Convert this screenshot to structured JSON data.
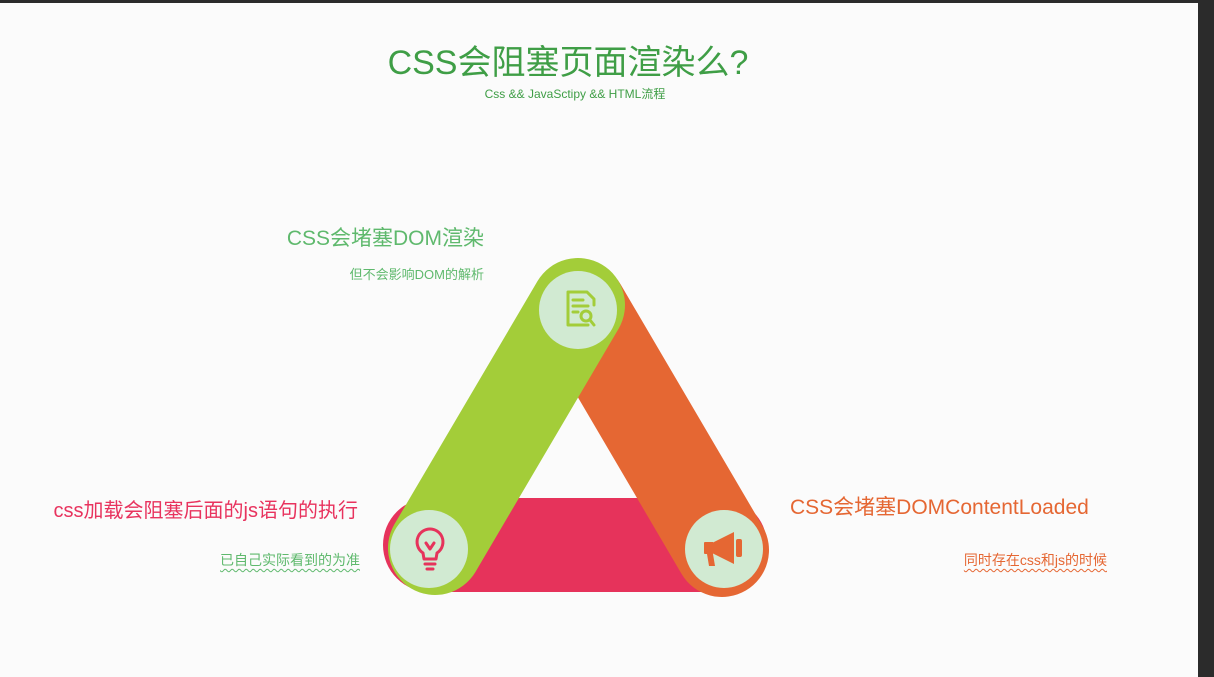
{
  "slide": {
    "title": "CSS会阻塞页面渲染么?",
    "subtitle": "Css && JavaSctipy && HTML流程"
  },
  "nodes": [
    {
      "id": "top",
      "heading": "CSS会堵塞DOM渲染",
      "note": "但不会影响DOM的解析",
      "icon": "document-search-icon",
      "color": "#a3cd39",
      "text_color": "#5fb96d"
    },
    {
      "id": "left",
      "heading": "css加载会阻塞后面的js语句的执行",
      "note": "已自己实际看到的为准",
      "icon": "lightbulb-icon",
      "color": "#e6335b",
      "text_color": "#e8335e",
      "note_color": "#5fb96d"
    },
    {
      "id": "right",
      "heading": "CSS会堵塞DOMContentLoaded",
      "note": "同时存在css和js的时候",
      "icon": "megaphone-icon",
      "color": "#e56733",
      "text_color": "#e56733"
    }
  ],
  "colors": {
    "title": "#3f9e46",
    "subtitle": "#3f9e46",
    "icon_circle": "#d1ead2",
    "background": "#fbfbfb"
  }
}
